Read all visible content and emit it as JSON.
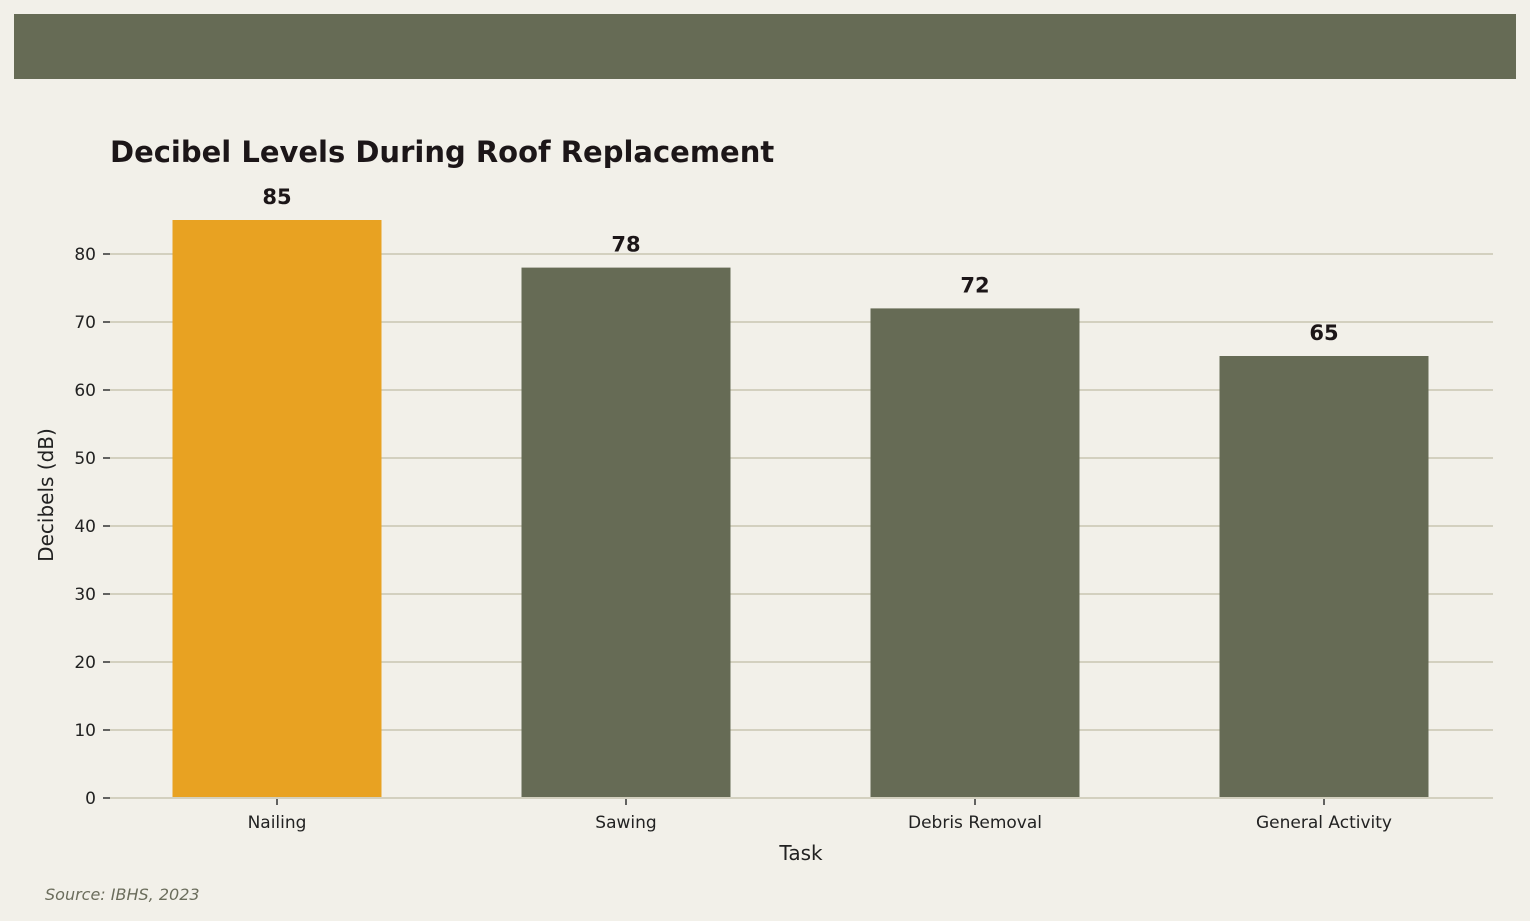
{
  "colors": {
    "background": "#f2f0e9",
    "header_band": "#666b55",
    "highlight_bar": "#e8a222",
    "default_bar": "#666b55",
    "grid": "#d3d0bf",
    "text": "#1c1618",
    "source_text": "#6b6d5c"
  },
  "chart_data": {
    "type": "bar",
    "title": "Decibel Levels During Roof Replacement",
    "xlabel": "Task",
    "ylabel": "Decibels (dB)",
    "categories": [
      "Nailing",
      "Sawing",
      "Debris Removal",
      "General Activity"
    ],
    "values": [
      85,
      78,
      72,
      65
    ],
    "data_labels": [
      "85",
      "78",
      "72",
      "65"
    ],
    "highlight_index": 0,
    "ylim": [
      0,
      88
    ],
    "yticks": [
      0,
      10,
      20,
      30,
      40,
      50,
      60,
      70,
      80
    ],
    "ytick_labels": [
      "0",
      "10",
      "20",
      "30",
      "40",
      "50",
      "60",
      "70",
      "80"
    ],
    "grid": true,
    "legend": "none"
  },
  "source": "Source: IBHS, 2023"
}
